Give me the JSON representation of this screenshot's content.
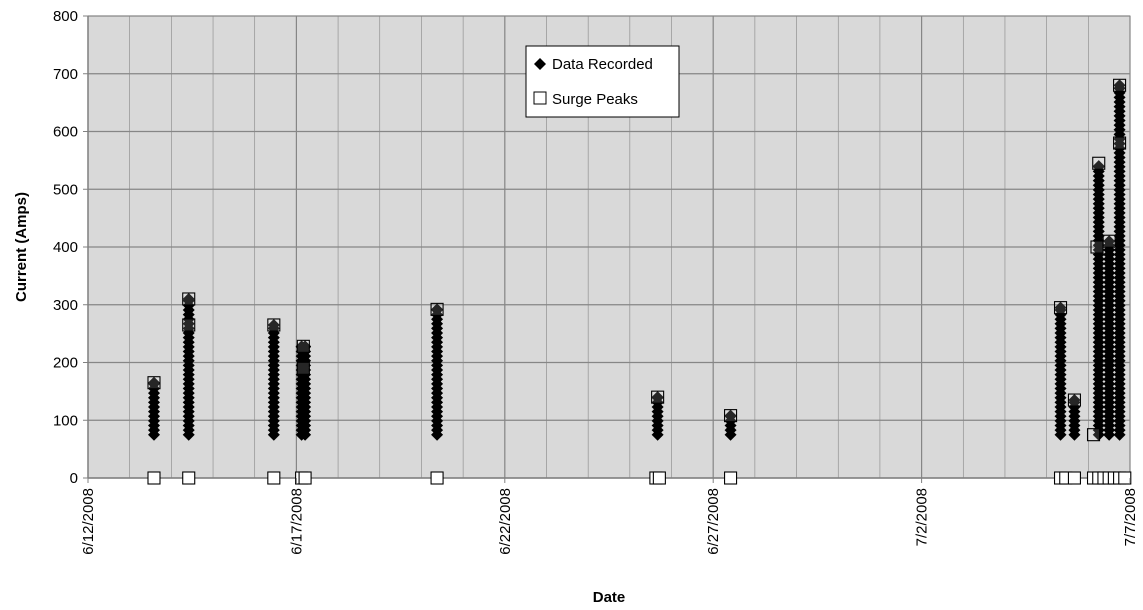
{
  "chart_data": {
    "type": "scatter",
    "xlabel": "Date",
    "ylabel": "Current (Amps)",
    "x_tick_labels": [
      "6/12/2008",
      "6/17/2008",
      "6/22/2008",
      "6/27/2008",
      "7/2/2008",
      "7/7/2008"
    ],
    "x_ticks": [
      "2008-06-12",
      "2008-06-17",
      "2008-06-22",
      "2008-06-27",
      "2008-07-02",
      "2008-07-07"
    ],
    "xlim": [
      "2008-06-12",
      "2008-07-07"
    ],
    "y_ticks": [
      0,
      100,
      200,
      300,
      400,
      500,
      600,
      700,
      800
    ],
    "ylim": [
      0,
      800
    ],
    "grid": true,
    "legend": "top-center",
    "colors": {
      "plot_bg": "#d9d9d9",
      "grid": "#868686",
      "marker": "#000000"
    },
    "series": [
      {
        "name": "Data Recorded",
        "marker": "diamond",
        "clusters": [
          {
            "x": "2008-06-13 14:00",
            "min": 75,
            "max": 165
          },
          {
            "x": "2008-06-14 10:00",
            "min": 75,
            "max": 310
          },
          {
            "x": "2008-06-16 11:00",
            "min": 75,
            "max": 265
          },
          {
            "x": "2008-06-17 03:00",
            "min": 75,
            "max": 228
          },
          {
            "x": "2008-06-17 05:00",
            "min": 75,
            "max": 228
          },
          {
            "x": "2008-06-20 09:00",
            "min": 75,
            "max": 292
          },
          {
            "x": "2008-06-25 16:00",
            "min": 75,
            "max": 140
          },
          {
            "x": "2008-06-27 10:00",
            "min": 75,
            "max": 108
          },
          {
            "x": "2008-07-05 08:00",
            "min": 75,
            "max": 295
          },
          {
            "x": "2008-07-05 16:00",
            "min": 75,
            "max": 135
          },
          {
            "x": "2008-07-06 06:00",
            "min": 75,
            "max": 540
          },
          {
            "x": "2008-07-06 12:00",
            "min": 75,
            "max": 410
          },
          {
            "x": "2008-07-06 18:00",
            "min": 75,
            "max": 680
          }
        ]
      },
      {
        "name": "Surge Peaks",
        "marker": "open-square",
        "points": [
          {
            "x": "2008-06-13 14:00",
            "y": 165
          },
          {
            "x": "2008-06-13 14:00",
            "y": 0
          },
          {
            "x": "2008-06-14 10:00",
            "y": 310
          },
          {
            "x": "2008-06-14 10:00",
            "y": 265
          },
          {
            "x": "2008-06-14 10:00",
            "y": 0
          },
          {
            "x": "2008-06-16 11:00",
            "y": 265
          },
          {
            "x": "2008-06-16 11:00",
            "y": 0
          },
          {
            "x": "2008-06-17 04:00",
            "y": 228
          },
          {
            "x": "2008-06-17 04:00",
            "y": 190
          },
          {
            "x": "2008-06-17 03:00",
            "y": 0
          },
          {
            "x": "2008-06-17 05:00",
            "y": 0
          },
          {
            "x": "2008-06-20 09:00",
            "y": 292
          },
          {
            "x": "2008-06-20 09:00",
            "y": 0
          },
          {
            "x": "2008-06-25 16:00",
            "y": 140
          },
          {
            "x": "2008-06-25 15:00",
            "y": 0
          },
          {
            "x": "2008-06-25 17:00",
            "y": 0
          },
          {
            "x": "2008-06-27 10:00",
            "y": 108
          },
          {
            "x": "2008-06-27 10:00",
            "y": 0
          },
          {
            "x": "2008-07-05 08:00",
            "y": 295
          },
          {
            "x": "2008-07-05 08:00",
            "y": 0
          },
          {
            "x": "2008-07-05 11:00",
            "y": 0
          },
          {
            "x": "2008-07-05 16:00",
            "y": 135
          },
          {
            "x": "2008-07-05 16:00",
            "y": 0
          },
          {
            "x": "2008-07-06 03:00",
            "y": 75
          },
          {
            "x": "2008-07-06 06:00",
            "y": 545
          },
          {
            "x": "2008-07-06 05:00",
            "y": 400
          },
          {
            "x": "2008-07-06 12:00",
            "y": 410
          },
          {
            "x": "2008-07-06 18:00",
            "y": 680
          },
          {
            "x": "2008-07-06 18:00",
            "y": 580
          },
          {
            "x": "2008-07-06 03:00",
            "y": 0
          },
          {
            "x": "2008-07-06 06:00",
            "y": 0
          },
          {
            "x": "2008-07-06 09:00",
            "y": 0
          },
          {
            "x": "2008-07-06 12:00",
            "y": 0
          },
          {
            "x": "2008-07-06 15:00",
            "y": 0
          },
          {
            "x": "2008-07-06 18:00",
            "y": 0
          },
          {
            "x": "2008-07-06 21:00",
            "y": 0
          }
        ]
      }
    ]
  }
}
